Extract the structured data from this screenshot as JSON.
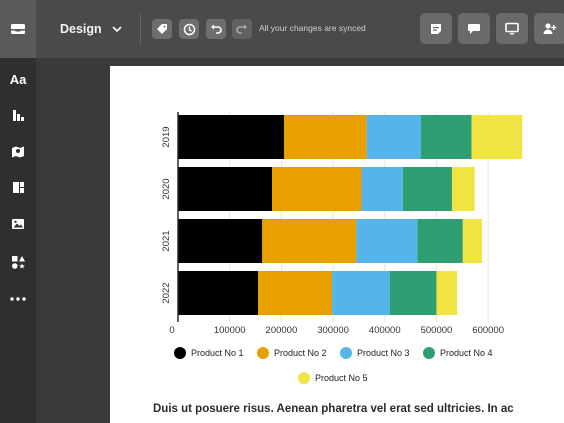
{
  "toolbar": {
    "design_label": "Design",
    "sync_status": "All your changes are synced"
  },
  "sidebar": {
    "text_item_label": "Aa",
    "items": [
      "text",
      "charts",
      "maps",
      "layouts",
      "images",
      "shapes",
      "more"
    ]
  },
  "colors": {
    "topbar": "#4a4a4a",
    "sidebar": "#2f2f2f",
    "canvas": "#ffffff"
  },
  "document": {
    "body_text": "Duis ut posuere risus. Aenean pharetra vel erat sed ultricies. In ac"
  },
  "chart_data": {
    "type": "bar",
    "orientation": "horizontal",
    "stacked": true,
    "categories": [
      "2019",
      "2020",
      "2021",
      "2022"
    ],
    "series": [
      {
        "name": "Product No 1",
        "color": "#000000",
        "values": [
          205000,
          182000,
          163000,
          155000
        ]
      },
      {
        "name": "Product No 2",
        "color": "#e8a000",
        "values": [
          160000,
          173000,
          182000,
          143000
        ]
      },
      {
        "name": "Product No 3",
        "color": "#56b4e9",
        "values": [
          105000,
          80000,
          118000,
          112000
        ]
      },
      {
        "name": "Product No 4",
        "color": "#2f9e72",
        "values": [
          98000,
          95000,
          88000,
          90000
        ]
      },
      {
        "name": "Product No 5",
        "color": "#f0e442",
        "values": [
          98000,
          44000,
          37000,
          40000
        ]
      }
    ],
    "xlim": [
      0,
      650000
    ],
    "x_ticks": [
      "0",
      "100000",
      "200000",
      "300000",
      "400000",
      "500000",
      "600000"
    ],
    "grid": true,
    "legend_position": "bottom"
  }
}
